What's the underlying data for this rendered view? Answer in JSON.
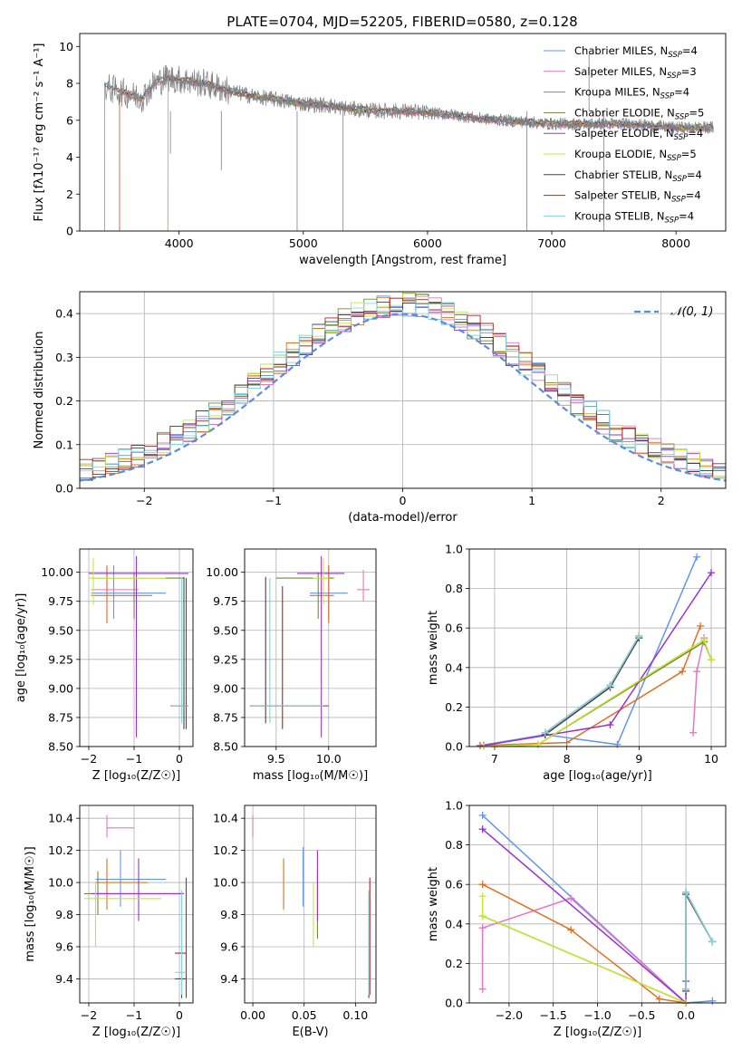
{
  "figure": {
    "title": "PLATE=0704, MJD=52205, FIBERID=0580, z=0.128"
  },
  "chart_data": [
    {
      "id": "spectrum",
      "type": "line",
      "xlabel": "wavelength [Angstrom, rest frame]",
      "ylabel": "Flux [fλ10⁻¹⁷ erg cm⁻² s⁻¹ A⁻¹]",
      "xlim": [
        3200,
        8400
      ],
      "ylim": [
        0,
        10.7
      ],
      "xticks": [
        4000,
        5000,
        6000,
        7000,
        8000
      ],
      "yticks": [
        0,
        2,
        4,
        6,
        8,
        10
      ],
      "grid": false,
      "legend_position": "top-right",
      "data_trace": {
        "color": "#808080",
        "x": [
          3400,
          3500,
          3600,
          3700,
          3800,
          3900,
          4000,
          4200,
          4400,
          4600,
          4800,
          5000,
          5200,
          5400,
          5600,
          5800,
          6000,
          6200,
          6400,
          6600,
          6800,
          7000,
          7200,
          7400,
          7600,
          7800,
          8000,
          8100,
          8300
        ],
        "y": [
          7.8,
          7.6,
          7.4,
          7.2,
          8.0,
          8.3,
          8.2,
          8.0,
          7.6,
          7.3,
          7.1,
          6.9,
          6.8,
          6.6,
          6.5,
          6.5,
          6.4,
          6.3,
          6.1,
          6.0,
          5.9,
          5.8,
          5.8,
          5.8,
          5.8,
          5.7,
          5.6,
          5.6,
          5.6
        ]
      },
      "series": [
        {
          "name": "Chabrier MILES, N_SSP=4",
          "color": "#6495ed",
          "start": 3520
        },
        {
          "name": "Salpeter MILES, N_SSP=3",
          "color": "#e377c2",
          "start": 3520
        },
        {
          "name": "Kroupa MILES, N_SSP=4",
          "color": "#e07020",
          "start": 3520
        },
        {
          "name": "Chabrier ELODIE, N_SSP=5",
          "color": "#6e8b3d",
          "start": 3910
        },
        {
          "name": "Salpeter ELODIE, N_SSP=4",
          "color": "#9932cc",
          "start": 3910
        },
        {
          "name": "Kroupa ELODIE, N_SSP=5",
          "color": "#c8e632",
          "start": 3910
        },
        {
          "name": "Chabrier STELIB, N_SSP=4",
          "color": "#444444",
          "start": 3400
        },
        {
          "name": "Salpeter STELIB, N_SSP=4",
          "color": "#b22222",
          "start": 3400
        },
        {
          "name": "Kroupa STELIB, N_SSP=4",
          "color": "#7fd7e3",
          "start": 3400
        }
      ],
      "series_labels": [
        {
          "prefix": "Chabrier MILES, N",
          "sub": "SSP",
          "suffix": "=4"
        },
        {
          "prefix": "Salpeter MILES, N",
          "sub": "SSP",
          "suffix": "=3"
        },
        {
          "prefix": "Kroupa MILES, N",
          "sub": "SSP",
          "suffix": "=4"
        },
        {
          "prefix": "Chabrier ELODIE, N",
          "sub": "SSP",
          "suffix": "=5"
        },
        {
          "prefix": "Salpeter ELODIE, N",
          "sub": "SSP",
          "suffix": "=4"
        },
        {
          "prefix": "Kroupa ELODIE, N",
          "sub": "SSP",
          "suffix": "=5"
        },
        {
          "prefix": "Chabrier STELIB, N",
          "sub": "SSP",
          "suffix": "=4"
        },
        {
          "prefix": "Salpeter STELIB, N",
          "sub": "SSP",
          "suffix": "=4"
        },
        {
          "prefix": "Kroupa STELIB, N",
          "sub": "SSP",
          "suffix": "=4"
        }
      ]
    },
    {
      "id": "residuals",
      "type": "histogram",
      "xlabel": "(data-model)/error",
      "ylabel": "Normed distribution",
      "xlim": [
        -2.5,
        2.5
      ],
      "ylim": [
        0,
        0.45
      ],
      "xticks": [
        -2,
        -1,
        0,
        1,
        2
      ],
      "yticks": [
        0.0,
        0.1,
        0.2,
        0.3,
        0.4
      ],
      "grid": true,
      "legend_position": "top-right",
      "reference_curve": {
        "name": "𝒩(0, 1)",
        "color": "#5b8dd9",
        "style": "dashed"
      },
      "bin_width": 0.1,
      "series_colors": [
        "#6495ed",
        "#e377c2",
        "#e07020",
        "#6e8b3d",
        "#9932cc",
        "#c8e632",
        "#444444",
        "#b22222",
        "#7fd7e3"
      ]
    },
    {
      "id": "age-vs-Z",
      "type": "errorbar",
      "xlabel": "Z [log₁₀(Z/Z☉)]",
      "ylabel": "age  [log₁₀(age/yr)]",
      "xlim": [
        -2.2,
        0.3
      ],
      "ylim": [
        8.5,
        10.2
      ],
      "xticks": [
        -2,
        -1,
        0
      ],
      "yticks": [
        8.5,
        8.75,
        9.0,
        9.25,
        9.5,
        9.75,
        10.0
      ],
      "grid": true,
      "points": [
        {
          "x": -1.45,
          "xlo": -1.95,
          "xhi": -0.3,
          "y": 9.82,
          "ylo": 9.6,
          "yhi": 10.06,
          "color": "#6495ed"
        },
        {
          "x": -1.6,
          "xlo": -1.95,
          "xhi": -0.9,
          "y": 9.85,
          "ylo": 9.75,
          "yhi": 10.05,
          "color": "#e377c2"
        },
        {
          "x": -1.6,
          "xlo": -1.95,
          "xhi": -0.6,
          "y": 9.8,
          "ylo": 9.56,
          "yhi": 10.06,
          "color": "#e07020"
        },
        {
          "x": -1.0,
          "xlo": -1.95,
          "xhi": 0.1,
          "y": 9.95,
          "ylo": 9.6,
          "yhi": 10.0,
          "color": "#6e8b3d"
        },
        {
          "x": -0.95,
          "xlo": -2.0,
          "xhi": 0.2,
          "y": 9.99,
          "ylo": 8.58,
          "yhi": 10.14,
          "color": "#9932cc"
        },
        {
          "x": -1.9,
          "xlo": -2.0,
          "xhi": -0.3,
          "y": 9.95,
          "ylo": 9.72,
          "yhi": 10.12,
          "color": "#c8e632"
        },
        {
          "x": 0.1,
          "xlo": -0.2,
          "xhi": 0.2,
          "y": 8.85,
          "ylo": 8.65,
          "yhi": 9.96,
          "color": "#444444"
        },
        {
          "x": 0.15,
          "xlo": -0.2,
          "xhi": 0.2,
          "y": 8.85,
          "ylo": 8.65,
          "yhi": 9.95,
          "color": "#b22222"
        },
        {
          "x": 0.05,
          "xlo": -0.2,
          "xhi": 0.2,
          "y": 8.85,
          "ylo": 8.7,
          "yhi": 9.95,
          "color": "#7fd7e3"
        }
      ]
    },
    {
      "id": "age-vs-mass",
      "type": "errorbar",
      "xlabel": "mass [log₁₀(M/M☉)]",
      "ylabel": "",
      "xlim": [
        9.2,
        10.45
      ],
      "ylim": [
        8.5,
        10.2
      ],
      "xticks": [
        9.5,
        10.0
      ],
      "yticks": [
        8.5,
        8.75,
        9.0,
        9.25,
        9.5,
        9.75,
        10.0
      ],
      "grid": true,
      "points": [
        {
          "x": 10.0,
          "xlo": 9.82,
          "xhi": 10.18,
          "y": 9.82,
          "ylo": 9.6,
          "yhi": 10.06,
          "color": "#6495ed"
        },
        {
          "x": 10.33,
          "xlo": 10.27,
          "xhi": 10.39,
          "y": 9.85,
          "ylo": 9.75,
          "yhi": 10.02,
          "color": "#e377c2"
        },
        {
          "x": 10.0,
          "xlo": 9.82,
          "xhi": 10.05,
          "y": 9.8,
          "ylo": 9.56,
          "yhi": 10.06,
          "color": "#e07020"
        },
        {
          "x": 9.9,
          "xlo": 9.5,
          "xhi": 10.05,
          "y": 9.95,
          "ylo": 9.6,
          "yhi": 10.0,
          "color": "#6e8b3d"
        },
        {
          "x": 9.93,
          "xlo": 9.7,
          "xhi": 10.15,
          "y": 9.99,
          "ylo": 8.58,
          "yhi": 10.14,
          "color": "#9932cc"
        },
        {
          "x": 9.95,
          "xlo": 9.85,
          "xhi": 10.0,
          "y": 9.95,
          "ylo": 9.72,
          "yhi": 10.12,
          "color": "#c8e632"
        },
        {
          "x": 9.4,
          "xlo": 9.25,
          "xhi": 9.95,
          "y": 8.85,
          "ylo": 8.7,
          "yhi": 9.96,
          "color": "#444444"
        },
        {
          "x": 9.56,
          "xlo": 9.25,
          "xhi": 10.0,
          "y": 8.85,
          "ylo": 8.65,
          "yhi": 9.88,
          "color": "#b22222"
        },
        {
          "x": 9.44,
          "xlo": 9.25,
          "xhi": 9.95,
          "y": 8.85,
          "ylo": 8.7,
          "yhi": 9.95,
          "color": "#7fd7e3"
        }
      ]
    },
    {
      "id": "weight-vs-age",
      "type": "line",
      "xlabel": "age  [log₁₀(age/yr)]",
      "ylabel": "mass weight",
      "xlim": [
        6.65,
        10.2
      ],
      "ylim": [
        0,
        1.0
      ],
      "xticks": [
        7,
        8,
        9,
        10
      ],
      "yticks": [
        0.0,
        0.2,
        0.4,
        0.6,
        0.8,
        1.0
      ],
      "grid": true,
      "series": [
        {
          "color": "#6495ed",
          "x": [
            6.8,
            7.7,
            8.7,
            9.8
          ],
          "y": [
            0.005,
            0.06,
            0.01,
            0.96
          ]
        },
        {
          "color": "#e377c2",
          "x": [
            9.75,
            9.8,
            9.9
          ],
          "y": [
            0.07,
            0.38,
            0.55
          ]
        },
        {
          "color": "#e07020",
          "x": [
            6.8,
            8.0,
            9.6,
            9.85
          ],
          "y": [
            0.005,
            0.02,
            0.38,
            0.61
          ]
        },
        {
          "color": "#6e8b3d",
          "x": [
            7.0,
            7.6,
            9.9,
            10.0
          ],
          "y": [
            0.0,
            0.01,
            0.53,
            0.44
          ]
        },
        {
          "color": "#9932cc",
          "x": [
            6.85,
            8.6,
            10.0
          ],
          "y": [
            0.005,
            0.11,
            0.88
          ]
        },
        {
          "color": "#c8e632",
          "x": [
            6.85,
            7.6,
            9.9,
            10.0
          ],
          "y": [
            0.0,
            0.01,
            0.54,
            0.44
          ]
        },
        {
          "color": "#444444",
          "x": [
            7.7,
            8.6,
            9.0
          ],
          "y": [
            0.06,
            0.3,
            0.55
          ]
        },
        {
          "color": "#b22222",
          "x": [
            7.7,
            8.6,
            9.0
          ],
          "y": [
            0.07,
            0.31,
            0.56
          ]
        },
        {
          "color": "#7fd7e3",
          "x": [
            7.7,
            8.6,
            9.0
          ],
          "y": [
            0.07,
            0.31,
            0.56
          ]
        }
      ]
    },
    {
      "id": "mass-vs-Z",
      "type": "errorbar",
      "xlabel": "Z [log₁₀(Z/Z☉)]",
      "ylabel": "mass [log₁₀(M/M☉)]",
      "xlim": [
        -2.2,
        0.3
      ],
      "ylim": [
        9.25,
        10.48
      ],
      "xticks": [
        -2,
        -1,
        0
      ],
      "yticks": [
        9.4,
        9.6,
        9.8,
        10.0,
        10.2,
        10.4
      ],
      "grid": true,
      "points": [
        {
          "x": -1.3,
          "xlo": -1.85,
          "xhi": -0.3,
          "y": 10.02,
          "ylo": 9.85,
          "yhi": 10.2,
          "color": "#6495ed"
        },
        {
          "x": -1.6,
          "xlo": -1.6,
          "xhi": -1.0,
          "y": 10.34,
          "ylo": 10.28,
          "yhi": 10.42,
          "color": "#e377c2"
        },
        {
          "x": -1.6,
          "xlo": -1.85,
          "xhi": -0.7,
          "y": 10.0,
          "ylo": 9.83,
          "yhi": 10.15,
          "color": "#e07020"
        },
        {
          "x": -1.8,
          "xlo": -2.1,
          "xhi": 0.1,
          "y": 9.93,
          "ylo": 9.8,
          "yhi": 10.07,
          "color": "#6e8b3d"
        },
        {
          "x": -0.9,
          "xlo": -1.95,
          "xhi": 0.1,
          "y": 9.93,
          "ylo": 9.76,
          "yhi": 10.15,
          "color": "#9932cc"
        },
        {
          "x": -1.85,
          "xlo": -2.1,
          "xhi": -0.4,
          "y": 9.9,
          "ylo": 9.6,
          "yhi": 10.0,
          "color": "#c8e632"
        },
        {
          "x": 0.05,
          "xlo": -0.1,
          "xhi": 0.15,
          "y": 9.4,
          "ylo": 9.28,
          "yhi": 9.95,
          "color": "#444444"
        },
        {
          "x": 0.15,
          "xlo": -0.1,
          "xhi": 0.15,
          "y": 9.56,
          "ylo": 9.28,
          "yhi": 10.03,
          "color": "#b22222"
        },
        {
          "x": 0.05,
          "xlo": -0.1,
          "xhi": 0.15,
          "y": 9.44,
          "ylo": 9.3,
          "yhi": 9.95,
          "color": "#7fd7e3"
        }
      ]
    },
    {
      "id": "mass-vs-EBV",
      "type": "errorbar",
      "xlabel": "E(B-V)",
      "ylabel": "",
      "xlim": [
        -0.008,
        0.12
      ],
      "ylim": [
        9.25,
        10.48
      ],
      "xticks": [
        0.0,
        0.05,
        0.1
      ],
      "yticks": [
        9.4,
        9.6,
        9.8,
        10.0,
        10.2,
        10.4
      ],
      "grid": true,
      "points": [
        {
          "x": 0.049,
          "y": 10.02,
          "ylo": 9.85,
          "yhi": 10.22,
          "color": "#6495ed"
        },
        {
          "x": 0.0,
          "y": 10.34,
          "ylo": 10.28,
          "yhi": 10.42,
          "color": "#e377c2"
        },
        {
          "x": 0.03,
          "y": 10.0,
          "ylo": 9.83,
          "yhi": 10.15,
          "color": "#e07020"
        },
        {
          "x": 0.063,
          "y": 9.93,
          "ylo": 9.65,
          "yhi": 10.07,
          "color": "#6e8b3d"
        },
        {
          "x": 0.063,
          "y": 9.93,
          "ylo": 9.76,
          "yhi": 10.2,
          "color": "#9932cc"
        },
        {
          "x": 0.059,
          "y": 9.9,
          "ylo": 9.6,
          "yhi": 10.0,
          "color": "#c8e632"
        },
        {
          "x": 0.113,
          "y": 9.4,
          "ylo": 9.28,
          "yhi": 9.95,
          "color": "#444444"
        },
        {
          "x": 0.114,
          "y": 9.56,
          "ylo": 9.3,
          "yhi": 10.03,
          "color": "#b22222"
        },
        {
          "x": 0.113,
          "y": 9.44,
          "ylo": 9.3,
          "yhi": 9.95,
          "color": "#7fd7e3"
        }
      ]
    },
    {
      "id": "weight-vs-Z",
      "type": "line",
      "xlabel": "Z [log₁₀(Z/Z☉)]",
      "ylabel": "mass weight",
      "xlim": [
        -2.45,
        0.45
      ],
      "ylim": [
        0,
        1.0
      ],
      "xticks": [
        -2.0,
        -1.5,
        -1.0,
        -0.5,
        0.0
      ],
      "yticks": [
        0.0,
        0.2,
        0.4,
        0.6,
        0.8,
        1.0
      ],
      "grid": true,
      "series": [
        {
          "color": "#6495ed",
          "x": [
            -2.3,
            0.0,
            0.3
          ],
          "y": [
            0.95,
            0.0,
            0.01
          ]
        },
        {
          "color": "#e377c2",
          "x": [
            -2.3,
            -2.3,
            -1.3,
            0.0
          ],
          "y": [
            0.07,
            0.38,
            0.53,
            0.0
          ]
        },
        {
          "color": "#e07020",
          "x": [
            -2.3,
            -1.3,
            -0.3,
            0.0
          ],
          "y": [
            0.6,
            0.37,
            0.02,
            0.0
          ]
        },
        {
          "color": "#6e8b3d",
          "x": [
            -2.3,
            0.0
          ],
          "y": [
            0.44,
            0.0
          ]
        },
        {
          "color": "#9932cc",
          "x": [
            -2.3,
            0.0,
            0.0
          ],
          "y": [
            0.88,
            0.0,
            0.11
          ]
        },
        {
          "color": "#c8e632",
          "x": [
            -2.3,
            -2.3,
            0.0
          ],
          "y": [
            0.54,
            0.44,
            0.0
          ]
        },
        {
          "color": "#444444",
          "x": [
            0.0,
            0.0,
            0.3
          ],
          "y": [
            0.06,
            0.55,
            0.31
          ]
        },
        {
          "color": "#b22222",
          "x": [
            0.0,
            0.0,
            0.3
          ],
          "y": [
            0.07,
            0.56,
            0.31
          ]
        },
        {
          "color": "#7fd7e3",
          "x": [
            0.0,
            0.0,
            0.3
          ],
          "y": [
            0.07,
            0.56,
            0.31
          ]
        }
      ]
    }
  ]
}
